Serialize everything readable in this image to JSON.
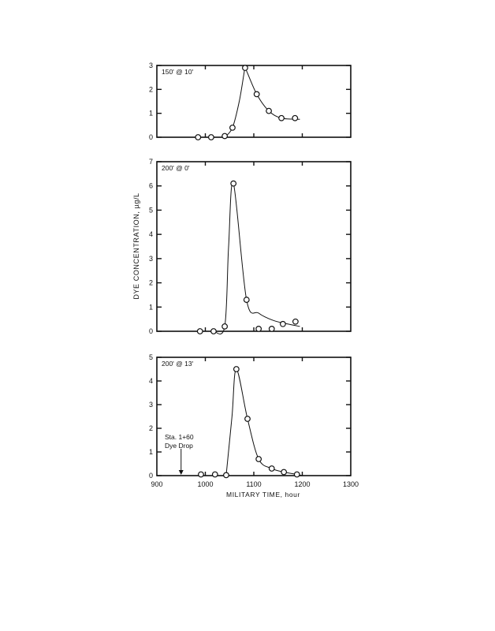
{
  "chart_data": [
    {
      "type": "line",
      "title": "150' @ 10'",
      "xlim": [
        900,
        1300
      ],
      "ylim": [
        0,
        3
      ],
      "yticks": [
        0,
        1,
        2,
        3
      ],
      "points": {
        "x": [
          985,
          1012,
          1040,
          1056,
          1082,
          1106,
          1131,
          1157,
          1185
        ],
        "y": [
          0,
          0,
          0.05,
          0.4,
          2.9,
          1.8,
          1.1,
          0.8,
          0.8
        ]
      },
      "curve": {
        "x": [
          1040,
          1056,
          1070,
          1080,
          1082,
          1106,
          1131,
          1157,
          1195
        ],
        "y": [
          0,
          0.4,
          1.5,
          2.7,
          2.9,
          1.8,
          1.1,
          0.8,
          0.75
        ]
      }
    },
    {
      "type": "line",
      "title": "200' @ 0'",
      "xlim": [
        900,
        1300
      ],
      "ylim": [
        0,
        7
      ],
      "yticks": [
        0,
        1,
        2,
        3,
        4,
        5,
        6,
        7
      ],
      "points": {
        "x": [
          989,
          1017,
          1040,
          1058,
          1085,
          1110,
          1137,
          1160,
          1186
        ],
        "y": [
          0,
          0,
          0.2,
          6.1,
          1.3,
          0.1,
          0.1,
          0.3,
          0.4
        ]
      },
      "curve": {
        "x": [
          1017,
          1040,
          1048,
          1058,
          1085,
          1110,
          1140,
          1170,
          1195
        ],
        "y": [
          0,
          0.2,
          3.5,
          6.1,
          1.3,
          0.75,
          0.45,
          0.3,
          0.2
        ]
      }
    },
    {
      "type": "line",
      "title": "200' @ 13'",
      "xlim": [
        900,
        1300
      ],
      "ylim": [
        0,
        5
      ],
      "yticks": [
        0,
        1,
        2,
        3,
        4,
        5
      ],
      "xticks": [
        900,
        1000,
        1100,
        1200,
        1300
      ],
      "xlabel": "MILITARY TIME, hour",
      "points": {
        "x": [
          991,
          1020,
          1043,
          1064,
          1087,
          1110,
          1137,
          1162,
          1189
        ],
        "y": [
          0.05,
          0.05,
          0.02,
          4.5,
          2.4,
          0.7,
          0.3,
          0.15,
          0.05
        ]
      },
      "curve": {
        "x": [
          1043,
          1055,
          1064,
          1087,
          1110,
          1137,
          1162,
          1189,
          1200
        ],
        "y": [
          0.02,
          2.5,
          4.5,
          2.4,
          0.7,
          0.3,
          0.15,
          0.05,
          0
        ]
      },
      "annotation": {
        "lines": [
          "Sta. 1+60",
          "Dye Drop"
        ],
        "x": 950
      }
    }
  ],
  "ylabel": "DYE CONCENTRATION, µg/L"
}
